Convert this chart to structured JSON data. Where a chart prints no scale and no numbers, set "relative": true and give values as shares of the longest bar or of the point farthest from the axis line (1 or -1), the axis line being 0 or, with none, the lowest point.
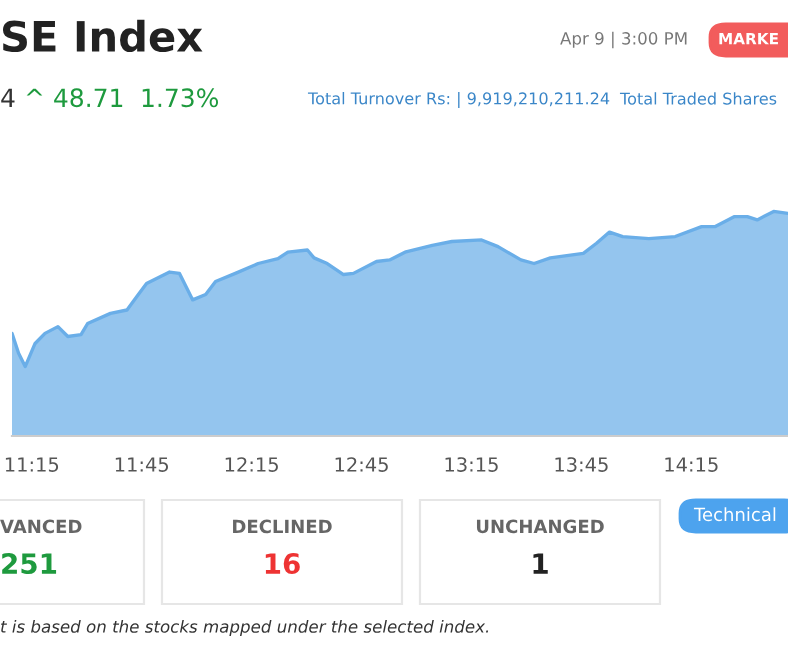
{
  "chart_data": {
    "type": "area",
    "title": "SE Index",
    "relative": true,
    "color": "#94c5ee",
    "x": [
      11.16,
      11.19,
      11.22,
      11.265,
      11.31,
      11.369,
      11.414,
      11.474,
      11.504,
      11.608,
      11.683,
      11.728,
      11.772,
      11.877,
      11.922,
      11.982,
      12.041,
      12.086,
      12.176,
      12.28,
      12.37,
      12.415,
      12.504,
      12.534,
      12.594,
      12.668,
      12.713,
      12.818,
      12.878,
      12.952,
      13.072,
      13.161,
      13.296,
      13.371,
      13.475,
      13.535,
      13.609,
      13.759,
      13.819,
      13.878,
      13.938,
      14.057,
      14.177,
      14.297,
      14.357,
      14.447,
      14.505,
      14.55,
      14.625,
      14.69
    ],
    "values": [
      0.457,
      0.368,
      0.309,
      0.412,
      0.457,
      0.487,
      0.443,
      0.451,
      0.501,
      0.546,
      0.561,
      0.621,
      0.679,
      0.73,
      0.724,
      0.606,
      0.63,
      0.688,
      0.724,
      0.768,
      0.79,
      0.819,
      0.828,
      0.793,
      0.768,
      0.719,
      0.724,
      0.777,
      0.784,
      0.82,
      0.849,
      0.866,
      0.873,
      0.843,
      0.784,
      0.768,
      0.793,
      0.813,
      0.858,
      0.908,
      0.888,
      0.879,
      0.888,
      0.932,
      0.932,
      0.977,
      0.977,
      0.962,
      1.0,
      0.991
    ],
    "xlim": [
      11.16,
      14.69
    ],
    "xticks": [
      {
        "value": 11.25,
        "label": "11:15"
      },
      {
        "value": 11.75,
        "label": "11:45"
      },
      {
        "value": 12.25,
        "label": "12:15"
      },
      {
        "value": 12.75,
        "label": "12:45"
      },
      {
        "value": 13.25,
        "label": "13:15"
      },
      {
        "value": 13.75,
        "label": "13:45"
      },
      {
        "value": 14.25,
        "label": "14:15"
      }
    ],
    "annotations": [
      "Apr 9 | 3:00 PM",
      "MARKE",
      "4",
      "^ 48.71",
      "1.73%",
      "Total Turnover Rs: | 9,919,210,211.24",
      "Total Traded Shares",
      "VANCED",
      "251",
      "DECLINED",
      "16",
      "UNCHANGED",
      "1",
      "Technical",
      "t is based on the stocks mapped under the selected index."
    ]
  }
}
